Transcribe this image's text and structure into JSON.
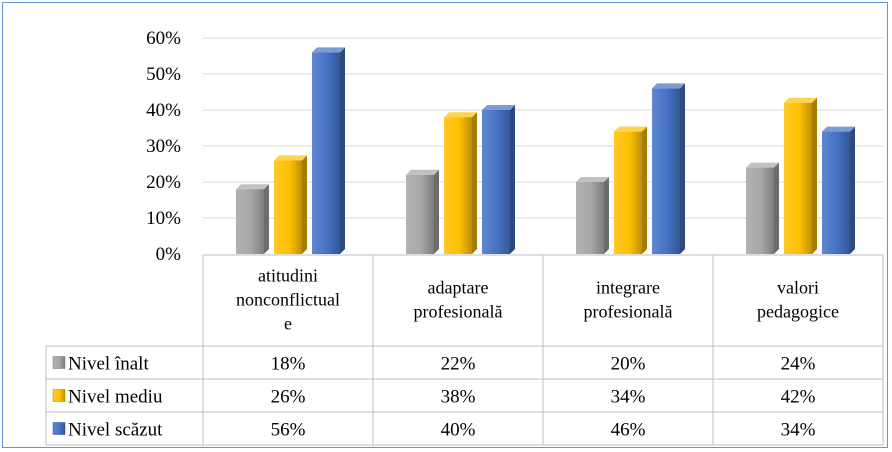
{
  "chart_data": {
    "type": "bar",
    "categories": [
      [
        "atitudini",
        "nonconflictual",
        "e"
      ],
      [
        "adaptare",
        "profesională"
      ],
      [
        "integrare",
        "profesională"
      ],
      [
        "valori",
        "pedagogice"
      ]
    ],
    "series": [
      {
        "name": "Nivel înalt",
        "values": [
          18,
          22,
          20,
          24
        ],
        "labels": [
          "18%",
          "22%",
          "20%",
          "24%"
        ],
        "color": "#a6a6a6"
      },
      {
        "name": "Nivel mediu",
        "values": [
          26,
          38,
          34,
          42
        ],
        "labels": [
          "26%",
          "38%",
          "34%",
          "42%"
        ],
        "color": "#ffc000"
      },
      {
        "name": "Nivel scăzut",
        "values": [
          56,
          40,
          46,
          34
        ],
        "labels": [
          "56%",
          "40%",
          "46%",
          "34%"
        ],
        "color": "#4472c4"
      }
    ],
    "yticks": [
      "0%",
      "10%",
      "20%",
      "30%",
      "40%",
      "50%",
      "60%"
    ],
    "ylim": [
      0,
      60
    ],
    "grid": true,
    "data_table": true,
    "title": "",
    "xlabel": "",
    "ylabel": ""
  }
}
